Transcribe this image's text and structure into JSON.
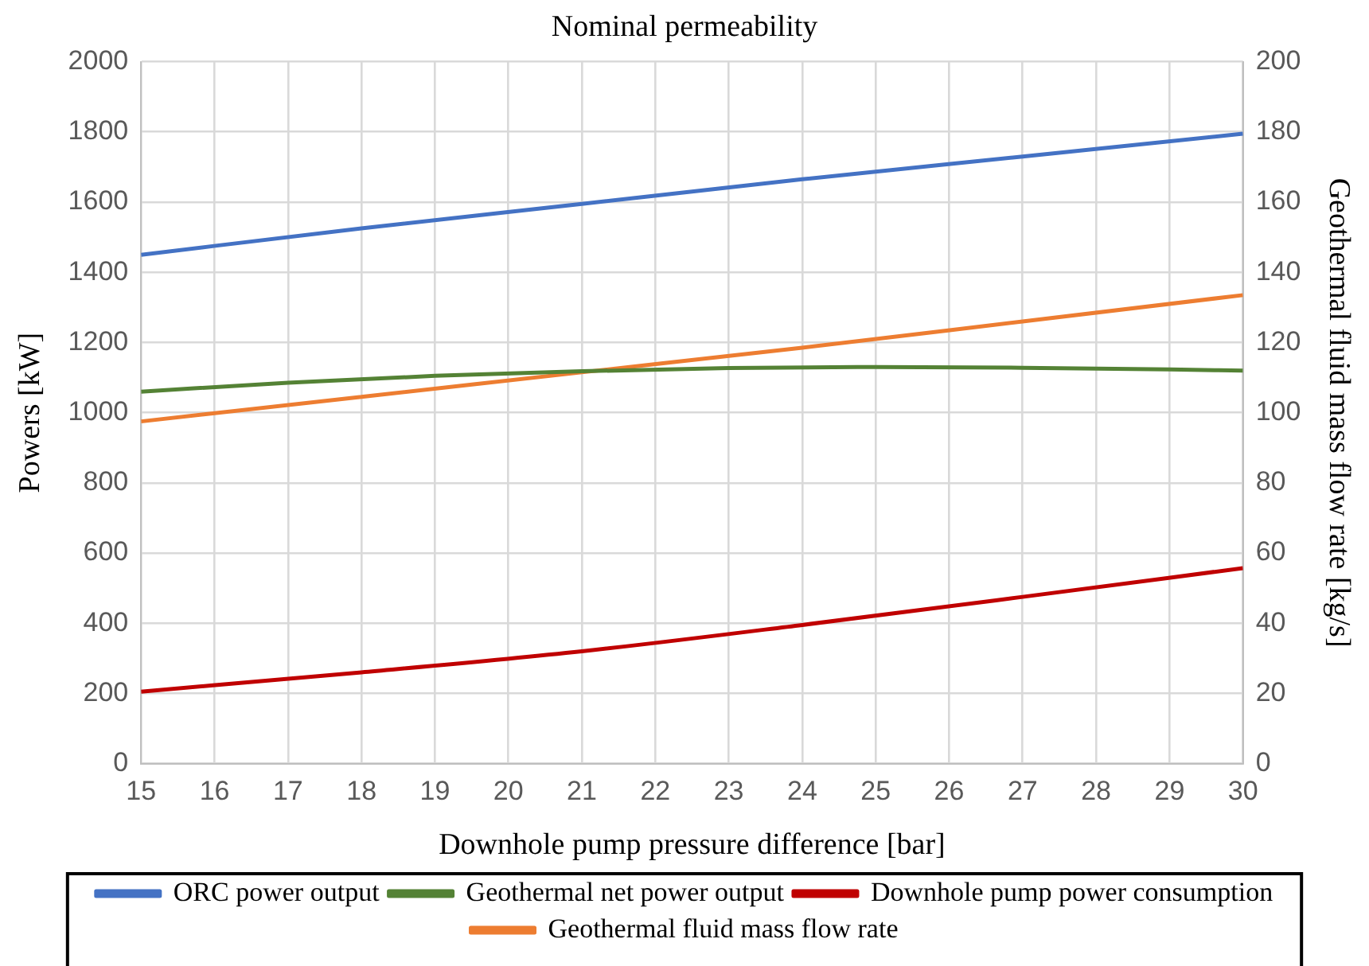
{
  "chart_data": {
    "type": "line",
    "title": "Nominal permeability",
    "xlabel": "Downhole pump pressure difference [bar]",
    "ylabel": "Powers [kW]",
    "y2label": "Geothermal fluid mass flow rate [kg/s]",
    "series": [
      {
        "name": "ORC power output",
        "color": "#4472c4",
        "x": [
          15,
          18,
          21,
          24,
          27,
          30
        ],
        "values": [
          1450,
          1525,
          1595,
          1665,
          1730,
          1795
        ]
      },
      {
        "name": "Geothermal net power output",
        "color": "#548235",
        "x": [
          15,
          17,
          19,
          21,
          23,
          25,
          27,
          29,
          30
        ],
        "values": [
          1060,
          1085,
          1105,
          1118,
          1127,
          1130,
          1128,
          1123,
          1120
        ]
      },
      {
        "name": "Downhole pump power consumption",
        "color": "#c00000",
        "x": [
          15,
          18,
          21,
          24,
          27,
          30
        ],
        "values": [
          205,
          260,
          320,
          395,
          475,
          557
        ]
      },
      {
        "name": "Geothermal fluid mass flow rate",
        "color": "#ed7d31",
        "axis": "y2",
        "x": [
          15,
          18,
          21,
          24,
          27,
          30
        ],
        "values": [
          97.5,
          104.5,
          111.5,
          118.5,
          126,
          133.5
        ]
      }
    ],
    "xlim": [
      15,
      30
    ],
    "xticks": [
      15,
      16,
      17,
      18,
      19,
      20,
      21,
      22,
      23,
      24,
      25,
      26,
      27,
      28,
      29,
      30
    ],
    "ylim": [
      0,
      2000
    ],
    "yticks": [
      0,
      200,
      400,
      600,
      800,
      1000,
      1200,
      1400,
      1600,
      1800,
      2000
    ],
    "y2lim": [
      0,
      200
    ],
    "y2ticks": [
      0,
      20,
      40,
      60,
      80,
      100,
      120,
      140,
      160,
      180,
      200
    ],
    "grid": true,
    "legend": "bottom",
    "marker": "none",
    "line_style": "solid"
  }
}
